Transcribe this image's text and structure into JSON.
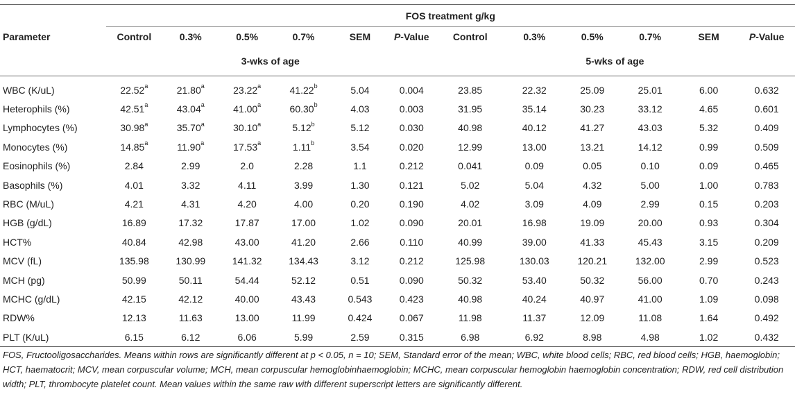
{
  "header": {
    "group_title": "FOS treatment g/kg",
    "parameter_label": "Parameter",
    "columns": [
      "Control",
      "0.3%",
      "0.5%",
      "0.7%",
      "SEM"
    ],
    "pvalue_prefix": "P",
    "pvalue_suffix": "-Value",
    "age_3": "3-wks of age",
    "age_5": "5-wks of age"
  },
  "rows": [
    {
      "name": "WBC (K/uL)",
      "w3": [
        [
          "22.52",
          "a"
        ],
        [
          "21.80",
          "a"
        ],
        [
          "23.22",
          "a"
        ],
        [
          "41.22",
          "b"
        ],
        [
          "5.04",
          ""
        ],
        [
          "0.004",
          ""
        ]
      ],
      "w5": [
        "23.85",
        "22.32",
        "25.09",
        "25.01",
        "6.00",
        "0.632"
      ]
    },
    {
      "name": "Heterophils (%)",
      "w3": [
        [
          "42.51",
          "a"
        ],
        [
          "43.04",
          "a"
        ],
        [
          "41.00",
          "a"
        ],
        [
          "60.30",
          "b"
        ],
        [
          "4.03",
          ""
        ],
        [
          "0.003",
          ""
        ]
      ],
      "w5": [
        "31.95",
        "35.14",
        "30.23",
        "33.12",
        "4.65",
        "0.601"
      ]
    },
    {
      "name": "Lymphocytes (%)",
      "w3": [
        [
          "30.98",
          "a"
        ],
        [
          "35.70",
          "a"
        ],
        [
          "30.10",
          "a"
        ],
        [
          "5.12",
          "b"
        ],
        [
          "5.12",
          ""
        ],
        [
          "0.030",
          ""
        ]
      ],
      "w5": [
        "40.98",
        "40.12",
        "41.27",
        "43.03",
        "5.32",
        "0.409"
      ]
    },
    {
      "name": "Monocytes (%)",
      "w3": [
        [
          "14.85",
          "a"
        ],
        [
          "11.90",
          "a"
        ],
        [
          "17.53",
          "a"
        ],
        [
          "1.11",
          "b"
        ],
        [
          "3.54",
          ""
        ],
        [
          "0.020",
          ""
        ]
      ],
      "w5": [
        "12.99",
        "13.00",
        "13.21",
        "14.12",
        "0.99",
        "0.509"
      ]
    },
    {
      "name": "Eosinophils (%)",
      "w3": [
        [
          "2.84",
          ""
        ],
        [
          "2.99",
          ""
        ],
        [
          "2.0",
          ""
        ],
        [
          "2.28",
          ""
        ],
        [
          "1.1",
          ""
        ],
        [
          "0.212",
          ""
        ]
      ],
      "w5": [
        "0.041",
        "0.09",
        "0.05",
        "0.10",
        "0.09",
        "0.465"
      ]
    },
    {
      "name": "Basophils (%)",
      "w3": [
        [
          "4.01",
          ""
        ],
        [
          "3.32",
          ""
        ],
        [
          "4.11",
          ""
        ],
        [
          "3.99",
          ""
        ],
        [
          "1.30",
          ""
        ],
        [
          "0.121",
          ""
        ]
      ],
      "w5": [
        "5.02",
        "5.04",
        "4.32",
        "5.00",
        "1.00",
        "0.783"
      ]
    },
    {
      "name": "RBC (M/uL)",
      "w3": [
        [
          "4.21",
          ""
        ],
        [
          "4.31",
          ""
        ],
        [
          "4.20",
          ""
        ],
        [
          "4.00",
          ""
        ],
        [
          "0.20",
          ""
        ],
        [
          "0.190",
          ""
        ]
      ],
      "w5": [
        "4.02",
        "3.09",
        "4.09",
        "2.99",
        "0.15",
        "0.203"
      ]
    },
    {
      "name": "HGB (g/dL)",
      "w3": [
        [
          "16.89",
          ""
        ],
        [
          "17.32",
          ""
        ],
        [
          "17.87",
          ""
        ],
        [
          "17.00",
          ""
        ],
        [
          "1.02",
          ""
        ],
        [
          "0.090",
          ""
        ]
      ],
      "w5": [
        "20.01",
        "16.98",
        "19.09",
        "20.00",
        "0.93",
        "0.304"
      ]
    },
    {
      "name": "HCT%",
      "w3": [
        [
          "40.84",
          ""
        ],
        [
          "42.98",
          ""
        ],
        [
          "43.00",
          ""
        ],
        [
          "41.20",
          ""
        ],
        [
          "2.66",
          ""
        ],
        [
          "0.110",
          ""
        ]
      ],
      "w5": [
        "40.99",
        "39.00",
        "41.33",
        "45.43",
        "3.15",
        "0.209"
      ]
    },
    {
      "name": "MCV (fL)",
      "w3": [
        [
          "135.98",
          ""
        ],
        [
          "130.99",
          ""
        ],
        [
          "141.32",
          ""
        ],
        [
          "134.43",
          ""
        ],
        [
          "3.12",
          ""
        ],
        [
          "0.212",
          ""
        ]
      ],
      "w5": [
        "125.98",
        "130.03",
        "120.21",
        "132.00",
        "2.99",
        "0.523"
      ]
    },
    {
      "name": "MCH (pg)",
      "w3": [
        [
          "50.99",
          ""
        ],
        [
          "50.11",
          ""
        ],
        [
          "54.44",
          ""
        ],
        [
          "52.12",
          ""
        ],
        [
          "0.51",
          ""
        ],
        [
          "0.090",
          ""
        ]
      ],
      "w5": [
        "50.32",
        "53.40",
        "50.32",
        "56.00",
        "0.70",
        "0.243"
      ]
    },
    {
      "name": "MCHC (g/dL)",
      "w3": [
        [
          "42.15",
          ""
        ],
        [
          "42.12",
          ""
        ],
        [
          "40.00",
          ""
        ],
        [
          "43.43",
          ""
        ],
        [
          "0.543",
          ""
        ],
        [
          "0.423",
          ""
        ]
      ],
      "w5": [
        "40.98",
        "40.24",
        "40.97",
        "41.00",
        "1.09",
        "0.098"
      ]
    },
    {
      "name": "RDW%",
      "w3": [
        [
          "12.13",
          ""
        ],
        [
          "11.63",
          ""
        ],
        [
          "13.00",
          ""
        ],
        [
          "11.99",
          ""
        ],
        [
          "0.424",
          ""
        ],
        [
          "0.067",
          ""
        ]
      ],
      "w5": [
        "11.98",
        "11.37",
        "12.09",
        "11.08",
        "1.64",
        "0.492"
      ]
    },
    {
      "name": "PLT (K/uL)",
      "w3": [
        [
          "6.15",
          ""
        ],
        [
          "6.12",
          ""
        ],
        [
          "6.06",
          ""
        ],
        [
          "5.99",
          ""
        ],
        [
          "2.59",
          ""
        ],
        [
          "0.315",
          ""
        ]
      ],
      "w5": [
        "6.98",
        "6.92",
        "8.98",
        "4.98",
        "1.02",
        "0.432"
      ]
    }
  ],
  "footnote": "FOS, Fructooligosaccharides. Means within rows are significantly different at p < 0.05, n = 10; SEM, Standard error of the mean; WBC, white blood cells; RBC, red blood cells; HGB, haemoglobin; HCT, haematocrit; MCV, mean corpuscular volume; MCH, mean corpuscular hemoglobinhaemoglobin; MCHC, mean corpuscular hemoglobin haemoglobin concentration; RDW, red cell distribution width; PLT, thrombocyte platelet count. Mean values within the same raw with different superscript letters are significantly different."
}
